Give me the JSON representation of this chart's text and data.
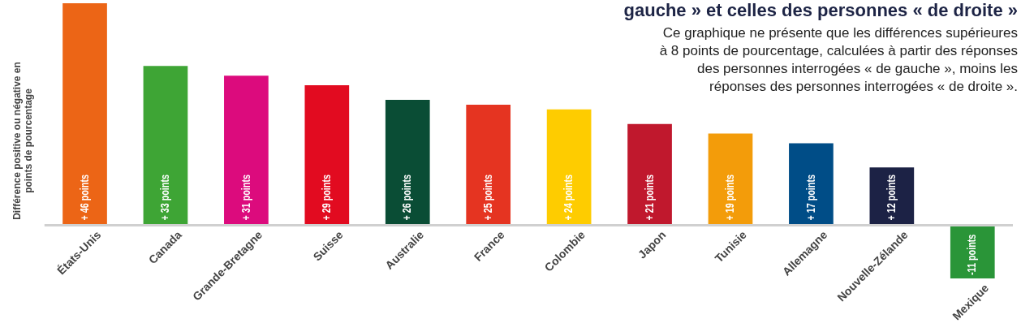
{
  "chart_data": {
    "type": "bar",
    "title": "gauche » et celles des personnes « de droite »",
    "ylabel": "Différence positive ou négative en points de pourcentage",
    "annotations": [
      "Ce graphique ne présente que les différences supérieures à 8 points de pourcentage, calculées à partir des réponses des personnes interrogées « de gauche », moins les réponses des personnes interrogées « de droite »."
    ],
    "categories": [
      "États-Unis",
      "Canada",
      "Grande-Bretagne",
      "Suisse",
      "Australie",
      "France",
      "Colombie",
      "Japon",
      "Tunisie",
      "Allemagne",
      "Nouvelle-Zélande",
      "Mexique"
    ],
    "values": [
      46,
      33,
      31,
      29,
      26,
      25,
      24,
      21,
      19,
      17,
      12,
      -11
    ],
    "value_labels": [
      "+ 46 points",
      "+ 33 points",
      "+ 31 points",
      "+ 29 points",
      "+ 26 points",
      "+ 25 points",
      "+ 24 points",
      "+ 21 points",
      "+ 19 points",
      "+ 17 points",
      "+ 12 points",
      "-11 points"
    ],
    "colors": [
      "#ec6516",
      "#3ea535",
      "#dc0b7d",
      "#e20b20",
      "#0a4d35",
      "#e53421",
      "#fecc00",
      "#c0182d",
      "#f39c0a",
      "#004d87",
      "#1c2245",
      "#2a9538"
    ]
  }
}
